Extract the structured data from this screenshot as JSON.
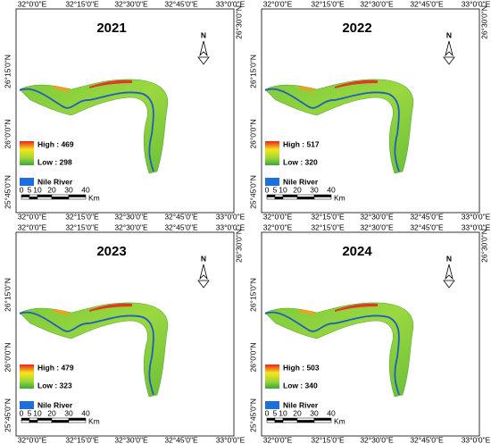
{
  "panels": [
    {
      "year": "2021",
      "high": "High : 469",
      "low": "Low : 298"
    },
    {
      "year": "2022",
      "high": "High : 517",
      "low": "Low : 320"
    },
    {
      "year": "2023",
      "high": "High : 479",
      "low": "Low : 323"
    },
    {
      "year": "2024",
      "high": "High : 503",
      "low": "Low : 340"
    }
  ],
  "x_labels": [
    "32°0'0\"E",
    "32°15'0\"E",
    "32°30'0\"E",
    "32°45'0\"E",
    "33°0'0\"E"
  ],
  "y_labels_left": [
    "26°15'0\"N",
    "26°0'0\"N",
    "25°45'0\"N"
  ],
  "y_label_right": "26°30'0\"N",
  "legend": {
    "river": "Nile River"
  },
  "scale": {
    "ticks": [
      "0",
      "5",
      "10",
      "20",
      "30",
      "40"
    ],
    "unit": "Km"
  },
  "north": "N"
}
